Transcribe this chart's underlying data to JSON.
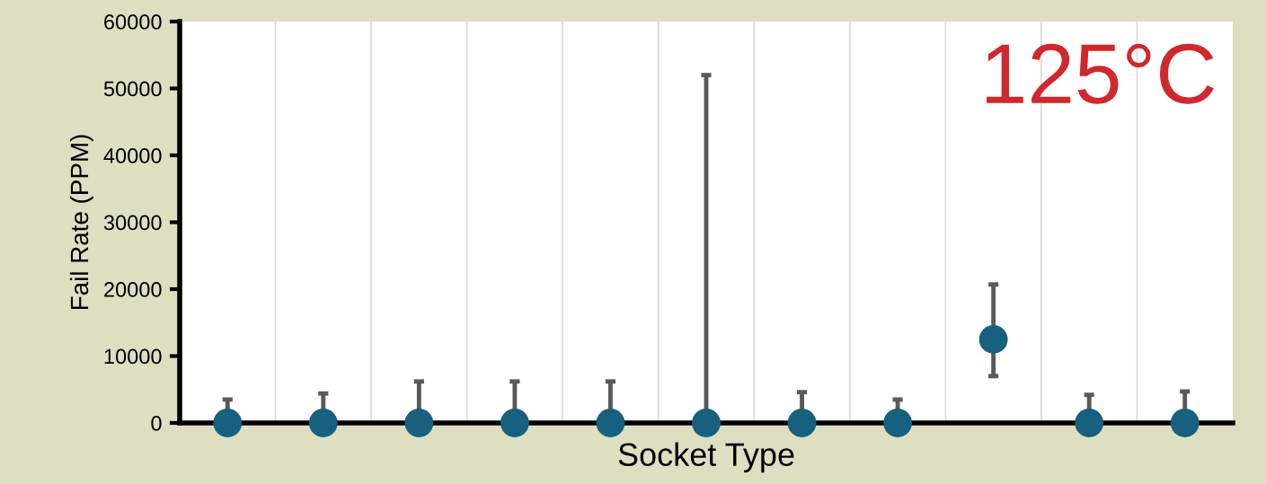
{
  "chart_data": {
    "type": "scatter",
    "xlabel": "Socket Type",
    "ylabel": "Fail Rate (PPM)",
    "categories": [
      null,
      null,
      null,
      null,
      null,
      null,
      null,
      null,
      null,
      null,
      null
    ],
    "values": [
      0,
      0,
      0,
      0,
      0,
      0,
      0,
      0,
      12500,
      0,
      0
    ],
    "errors": [
      [
        0,
        3500
      ],
      [
        0,
        4400
      ],
      [
        0,
        6200
      ],
      [
        0,
        6200
      ],
      [
        0,
        6200
      ],
      [
        0,
        52000
      ],
      [
        0,
        4600
      ],
      [
        0,
        3500
      ],
      [
        7000,
        20700
      ],
      [
        0,
        4200
      ],
      [
        0,
        4700
      ]
    ],
    "color": "#17607f",
    "marker": "circle",
    "ylim": [
      0,
      60000
    ],
    "yticks": [
      0,
      10000,
      20000,
      30000,
      40000,
      50000,
      60000
    ],
    "grid": "x",
    "legend": false,
    "annotations": [
      "125°C"
    ]
  }
}
